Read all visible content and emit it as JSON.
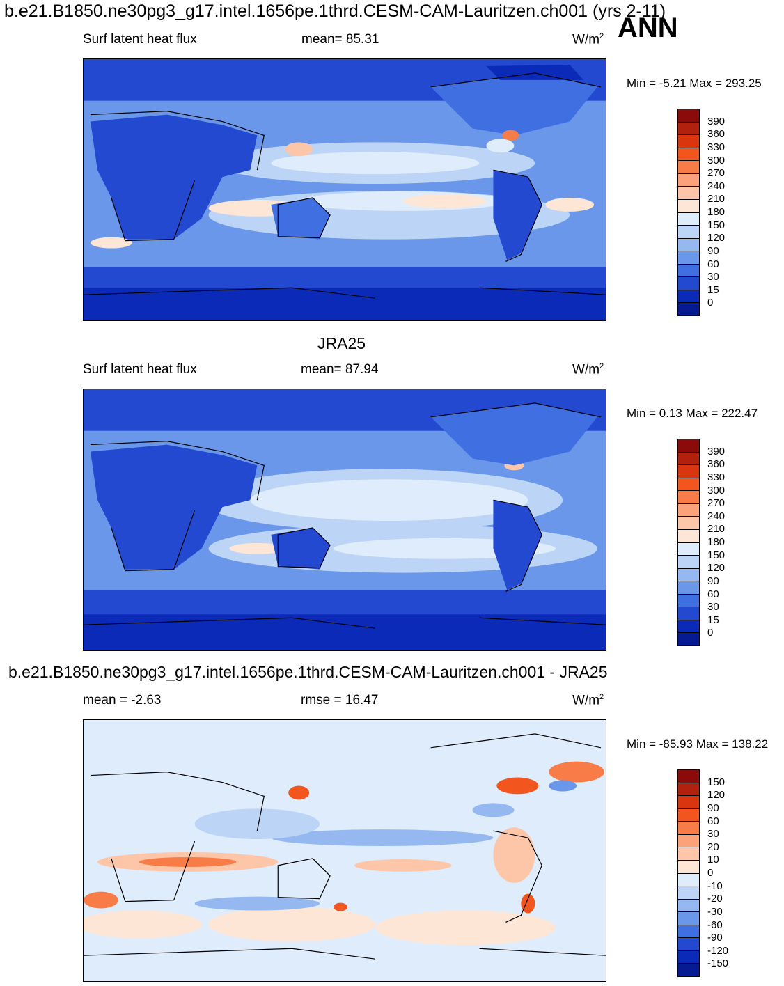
{
  "header": {
    "title": "b.e21.B1850.ne30pg3_g17.intel.1656pe.1thrd.CESM-CAM-Lauritzen.ch001 (yrs 2-11)",
    "season": "ANN"
  },
  "panels": [
    {
      "title": "",
      "left_label": "Surf latent heat flux",
      "center_label": "mean=  85.31",
      "unit_base": "W/m",
      "unit_exp": "2",
      "minmax": "Min =   -5.21 Max = 293.25",
      "colorbar": {
        "labels": [
          "390",
          "360",
          "330",
          "300",
          "270",
          "240",
          "210",
          "180",
          "150",
          "120",
          "90",
          "60",
          "30",
          "15",
          "0"
        ],
        "colors": [
          "#8b0a0a",
          "#b2200e",
          "#d9360f",
          "#f2551e",
          "#f87c47",
          "#fba27a",
          "#fdc6a8",
          "#fde6d6",
          "#dfecfb",
          "#bcd4f6",
          "#95b8f0",
          "#6a97ea",
          "#3f6fe0",
          "#2349d1",
          "#0c2ab8",
          "#061a91"
        ]
      }
    },
    {
      "title": "JRA25",
      "left_label": "Surf latent heat flux",
      "center_label": "mean=  87.94",
      "unit_base": "W/m",
      "unit_exp": "2",
      "minmax": "Min =   0.13 Max = 222.47",
      "colorbar": {
        "labels": [
          "390",
          "360",
          "330",
          "300",
          "270",
          "240",
          "210",
          "180",
          "150",
          "120",
          "90",
          "60",
          "30",
          "15",
          "0"
        ],
        "colors": [
          "#8b0a0a",
          "#b2200e",
          "#d9360f",
          "#f2551e",
          "#f87c47",
          "#fba27a",
          "#fdc6a8",
          "#fde6d6",
          "#dfecfb",
          "#bcd4f6",
          "#95b8f0",
          "#6a97ea",
          "#3f6fe0",
          "#2349d1",
          "#0c2ab8",
          "#061a91"
        ]
      }
    },
    {
      "title": "b.e21.B1850.ne30pg3_g17.intel.1656pe.1thrd.CESM-CAM-Lauritzen.ch001 - JRA25",
      "left_label": "mean =  -2.63",
      "center_label": "rmse =  16.47",
      "unit_base": "W/m",
      "unit_exp": "2",
      "minmax": "Min = -85.93 Max = 138.22",
      "colorbar": {
        "labels": [
          "150",
          "120",
          "90",
          "60",
          "30",
          "20",
          "10",
          "0",
          "-10",
          "-20",
          "-30",
          "-60",
          "-90",
          "-120",
          "-150"
        ],
        "colors": [
          "#8b0a0a",
          "#b2200e",
          "#d9360f",
          "#f2551e",
          "#f87c47",
          "#fba27a",
          "#fdc6a8",
          "#fde6d6",
          "#dfecfb",
          "#bcd4f6",
          "#95b8f0",
          "#6a97ea",
          "#3f6fe0",
          "#2349d1",
          "#0c2ab8",
          "#061a91"
        ]
      }
    }
  ],
  "chart_data": [
    {
      "type": "heatmap",
      "title": "b.e21.B1850.ne30pg3_g17.intel.1656pe.1thrd.CESM-CAM-Lauritzen.ch001 (yrs 2-11)",
      "season": "ANN",
      "variable": "Surf latent heat flux",
      "units": "W/m2",
      "mean": 85.31,
      "min": -5.21,
      "max": 293.25,
      "contour_levels": [
        0,
        15,
        30,
        60,
        90,
        120,
        150,
        180,
        210,
        240,
        270,
        300,
        330,
        360,
        390
      ]
    },
    {
      "type": "heatmap",
      "title": "JRA25",
      "variable": "Surf latent heat flux",
      "units": "W/m2",
      "mean": 87.94,
      "min": 0.13,
      "max": 222.47,
      "contour_levels": [
        0,
        15,
        30,
        60,
        90,
        120,
        150,
        180,
        210,
        240,
        270,
        300,
        330,
        360,
        390
      ]
    },
    {
      "type": "heatmap",
      "title": "b.e21.B1850.ne30pg3_g17.intel.1656pe.1thrd.CESM-CAM-Lauritzen.ch001 - JRA25",
      "units": "W/m2",
      "mean": -2.63,
      "rmse": 16.47,
      "min": -85.93,
      "max": 138.22,
      "contour_levels": [
        -150,
        -120,
        -90,
        -60,
        -30,
        -20,
        -10,
        0,
        10,
        20,
        30,
        60,
        90,
        120,
        150
      ]
    }
  ]
}
